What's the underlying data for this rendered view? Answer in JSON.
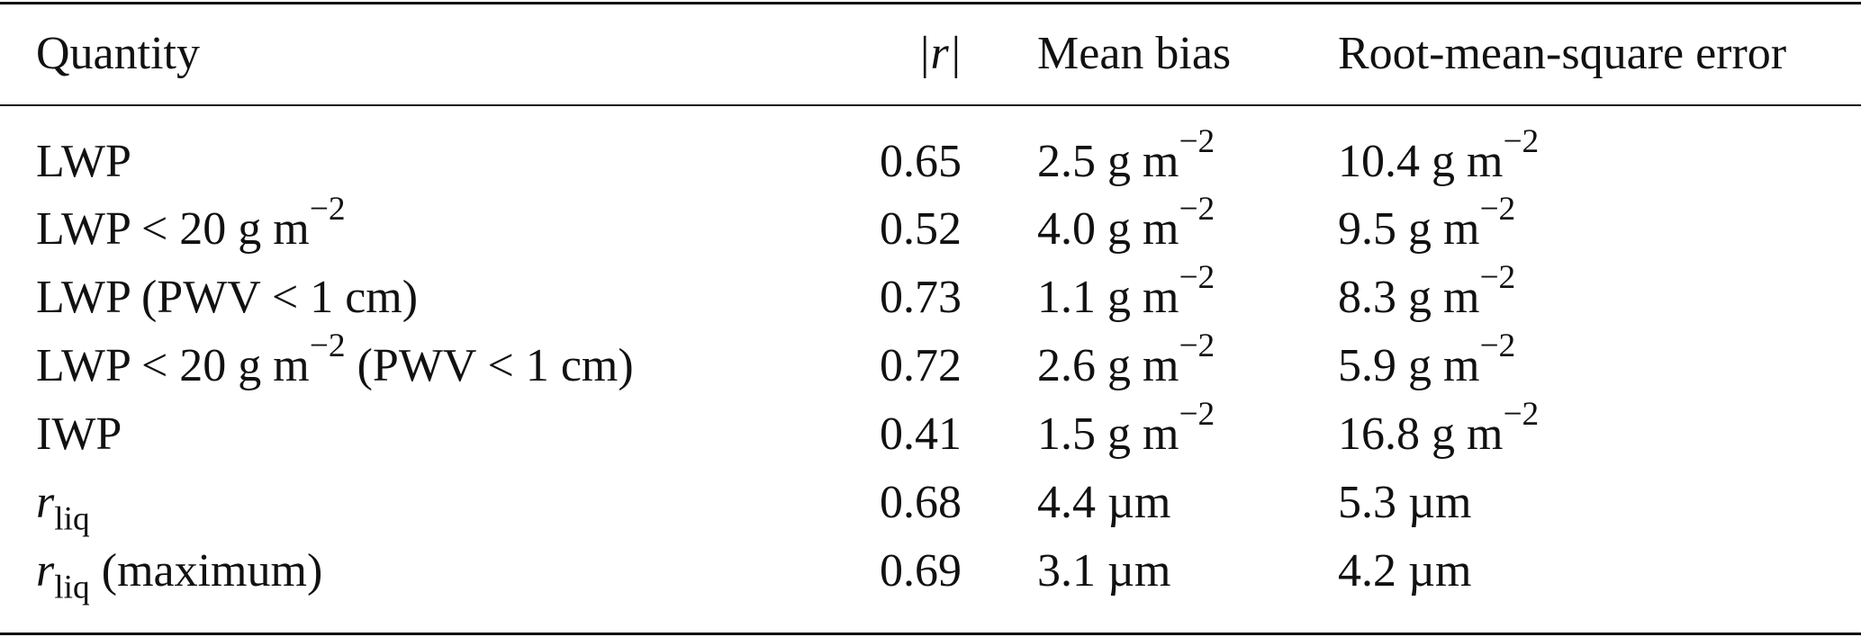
{
  "headers": {
    "quantity": "Quantity",
    "r": "|r|",
    "mean_bias": "Mean bias",
    "rmse": "Root-mean-square error"
  },
  "rows": [
    {
      "quantity_main": "LWP",
      "quantity_sup": "",
      "quantity_tail": "",
      "r": "0.65",
      "bias_value": "2.5 g m",
      "bias_sup": "−2",
      "rmse_value": "10.4 g m",
      "rmse_sup": "−2"
    },
    {
      "quantity_main": "LWP < 20 g m",
      "quantity_sup": "−2",
      "quantity_tail": "",
      "r": "0.52",
      "bias_value": "4.0 g m",
      "bias_sup": "−2",
      "rmse_value": "9.5 g m",
      "rmse_sup": "−2"
    },
    {
      "quantity_main": "LWP (PWV < 1 cm)",
      "quantity_sup": "",
      "quantity_tail": "",
      "r": "0.73",
      "bias_value": "1.1 g m",
      "bias_sup": "−2",
      "rmse_value": "8.3 g m",
      "rmse_sup": "−2"
    },
    {
      "quantity_main": "LWP < 20 g m",
      "quantity_sup": "−2",
      "quantity_tail": " (PWV < 1 cm)",
      "r": "0.72",
      "bias_value": "2.6 g m",
      "bias_sup": "−2",
      "rmse_value": "5.9 g m",
      "rmse_sup": "−2"
    },
    {
      "quantity_main": "IWP",
      "quantity_sup": "",
      "quantity_tail": "",
      "r": "0.41",
      "bias_value": "1.5 g m",
      "bias_sup": "−2",
      "rmse_value": "16.8 g m",
      "rmse_sup": "−2"
    },
    {
      "quantity_symbol": "r",
      "quantity_sub": "liq",
      "quantity_tail": "",
      "r": "0.68",
      "bias_value": "4.4 µm",
      "rmse_value": "5.3 µm"
    },
    {
      "quantity_symbol": "r",
      "quantity_sub": "liq",
      "quantity_tail": " (maximum)",
      "r": "0.69",
      "bias_value": "3.1 µm",
      "rmse_value": "4.2 µm"
    }
  ]
}
